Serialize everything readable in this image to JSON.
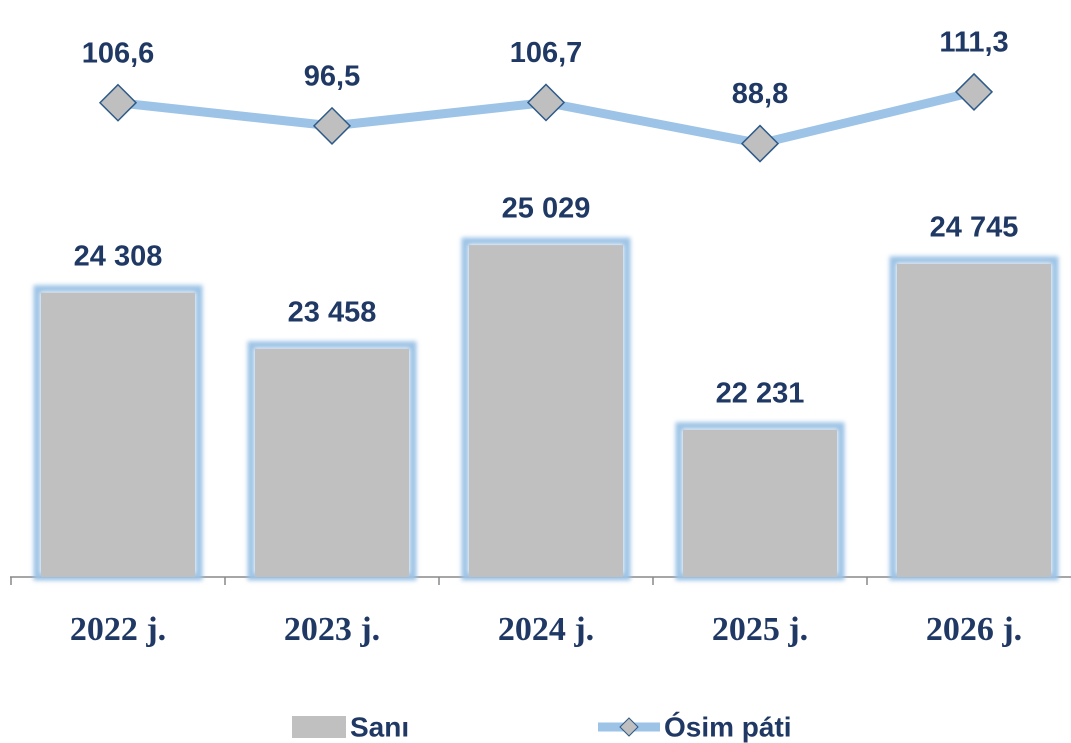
{
  "chart_data": {
    "type": "bar",
    "categories": [
      "2022 j.",
      "2023 j.",
      "2024 j.",
      "2025 j.",
      "2026 j."
    ],
    "series": [
      {
        "name": "Sanı",
        "type": "bar",
        "color": "#c0c0c0",
        "glow_color": "#9dc3e6",
        "values": [
          24308,
          23458,
          25029,
          22231,
          24745
        ],
        "value_labels": [
          "24 308",
          "23 458",
          "25 029",
          "22 231",
          "24 745"
        ]
      },
      {
        "name": "Ósim páti",
        "type": "line",
        "axis": "y2",
        "color": "#9dc3e6",
        "marker_color": "#bfbfbf",
        "marker_edge_color": "#2e5a88",
        "values": [
          106.6,
          96.5,
          106.7,
          88.8,
          111.3
        ],
        "value_labels": [
          "106,6",
          "96,5",
          "106,7",
          "88,8",
          "111,3"
        ]
      }
    ],
    "ylim": [
      20000,
      28000
    ],
    "y2lim": [
      -100,
      130
    ],
    "label_color": "#1f3864",
    "legend": "bottom"
  }
}
